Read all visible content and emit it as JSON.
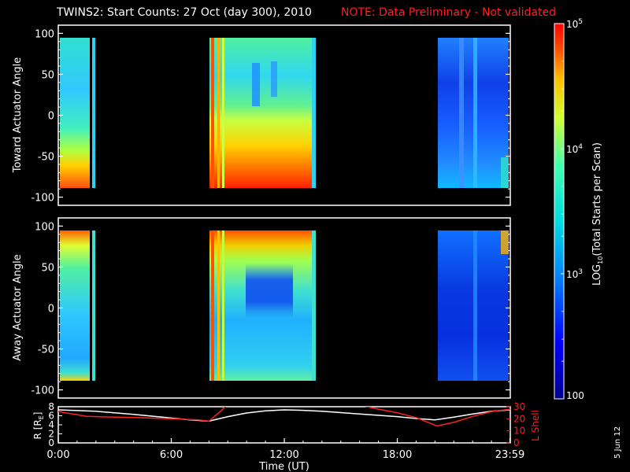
{
  "header": {
    "title": "TWINS2: Start Counts: 27 Oct (day 300), 2010",
    "note": "NOTE: Data Preliminary - Not validated"
  },
  "colors": {
    "background": "#000000",
    "axes": "#ffffff",
    "note": "#ff2020",
    "lshell": "#ff2020",
    "radius": "#ffffff"
  },
  "side_label": "5 Jun 12",
  "colorbar": {
    "label_prefix": "LOG",
    "label_sub": "10",
    "label_suffix": "(Total Starts per Scan)",
    "scale": "log",
    "range": [
      100,
      100000
    ],
    "tick_labels": [
      {
        "value": 100,
        "base": "100",
        "exp": ""
      },
      {
        "value": 1000,
        "base": "10",
        "exp": "3"
      },
      {
        "value": 10000,
        "base": "10",
        "exp": "4"
      },
      {
        "value": 100000,
        "base": "10",
        "exp": "5"
      }
    ]
  },
  "chart_data": [
    {
      "type": "heatmap",
      "panel": "toward",
      "ylabel": "Toward Actuator Angle",
      "xlim": [
        0,
        24
      ],
      "ylim": [
        -110,
        110
      ],
      "y_ticks": [
        "100",
        "50",
        "0",
        "-50",
        "-100"
      ],
      "y_tick_values": [
        100,
        50,
        0,
        -50,
        -100
      ],
      "data_coverage_hours": [
        [
          0,
          1.5
        ],
        [
          8.0,
          13.6
        ],
        [
          20.1,
          24
        ]
      ],
      "coverage_angle_range": [
        -90,
        90
      ],
      "description_values_log10": {
        "background": 3.3,
        "edge_peak": 5.0,
        "quiet_region": 2.4
      }
    },
    {
      "type": "heatmap",
      "panel": "away",
      "ylabel": "Away Actuator Angle",
      "xlim": [
        0,
        24
      ],
      "ylim": [
        -110,
        110
      ],
      "y_ticks": [
        "100",
        "50",
        "0",
        "-50",
        "-100"
      ],
      "y_tick_values": [
        100,
        50,
        0,
        -50,
        -100
      ],
      "data_coverage_hours": [
        [
          0,
          1.5
        ],
        [
          8.0,
          13.6
        ],
        [
          20.1,
          24
        ]
      ],
      "coverage_angle_range": [
        -90,
        90
      ]
    },
    {
      "type": "line",
      "panel": "orbit",
      "xlabel": "Time (UT)",
      "x_tick_labels": [
        "0:00",
        "6:00",
        "12:00",
        "18:00",
        "23:59"
      ],
      "x_tick_values": [
        0,
        6,
        12,
        18,
        23.98
      ],
      "ylabel_left": "R [R",
      "ylabel_left_sub": "E",
      "ylabel_left_suffix": "]",
      "ylim_left": [
        0,
        8
      ],
      "y_ticks_left": [
        "0",
        "2",
        "4",
        "6",
        "8"
      ],
      "ylabel_right": "L Shell",
      "ylim_right": [
        0,
        30
      ],
      "y_ticks_right": [
        "0",
        "10",
        "20",
        "30"
      ],
      "series": [
        {
          "axis": "left",
          "x": [
            0,
            2,
            4,
            6,
            7,
            8,
            9,
            10,
            11,
            12,
            13,
            14,
            16,
            18,
            19,
            20,
            21,
            22,
            23,
            24
          ],
          "y": [
            7.3,
            7.0,
            6.3,
            5.5,
            5.1,
            4.8,
            5.8,
            6.6,
            7.1,
            7.3,
            7.2,
            7.0,
            6.4,
            5.8,
            5.4,
            5.1,
            5.7,
            6.4,
            7.0,
            7.3
          ]
        },
        {
          "axis": "right",
          "x": [
            0,
            1.5,
            4,
            6,
            7.5,
            8.0,
            8.6,
            9.0
          ],
          "y": [
            26,
            22,
            21,
            20,
            19,
            18,
            26,
            32
          ]
        },
        {
          "axis": "right",
          "x": [
            15.8,
            17,
            18,
            19,
            20.1,
            21,
            22,
            23,
            24
          ],
          "y": [
            32,
            28,
            25,
            21,
            14,
            17,
            22,
            26,
            28
          ]
        }
      ]
    }
  ]
}
